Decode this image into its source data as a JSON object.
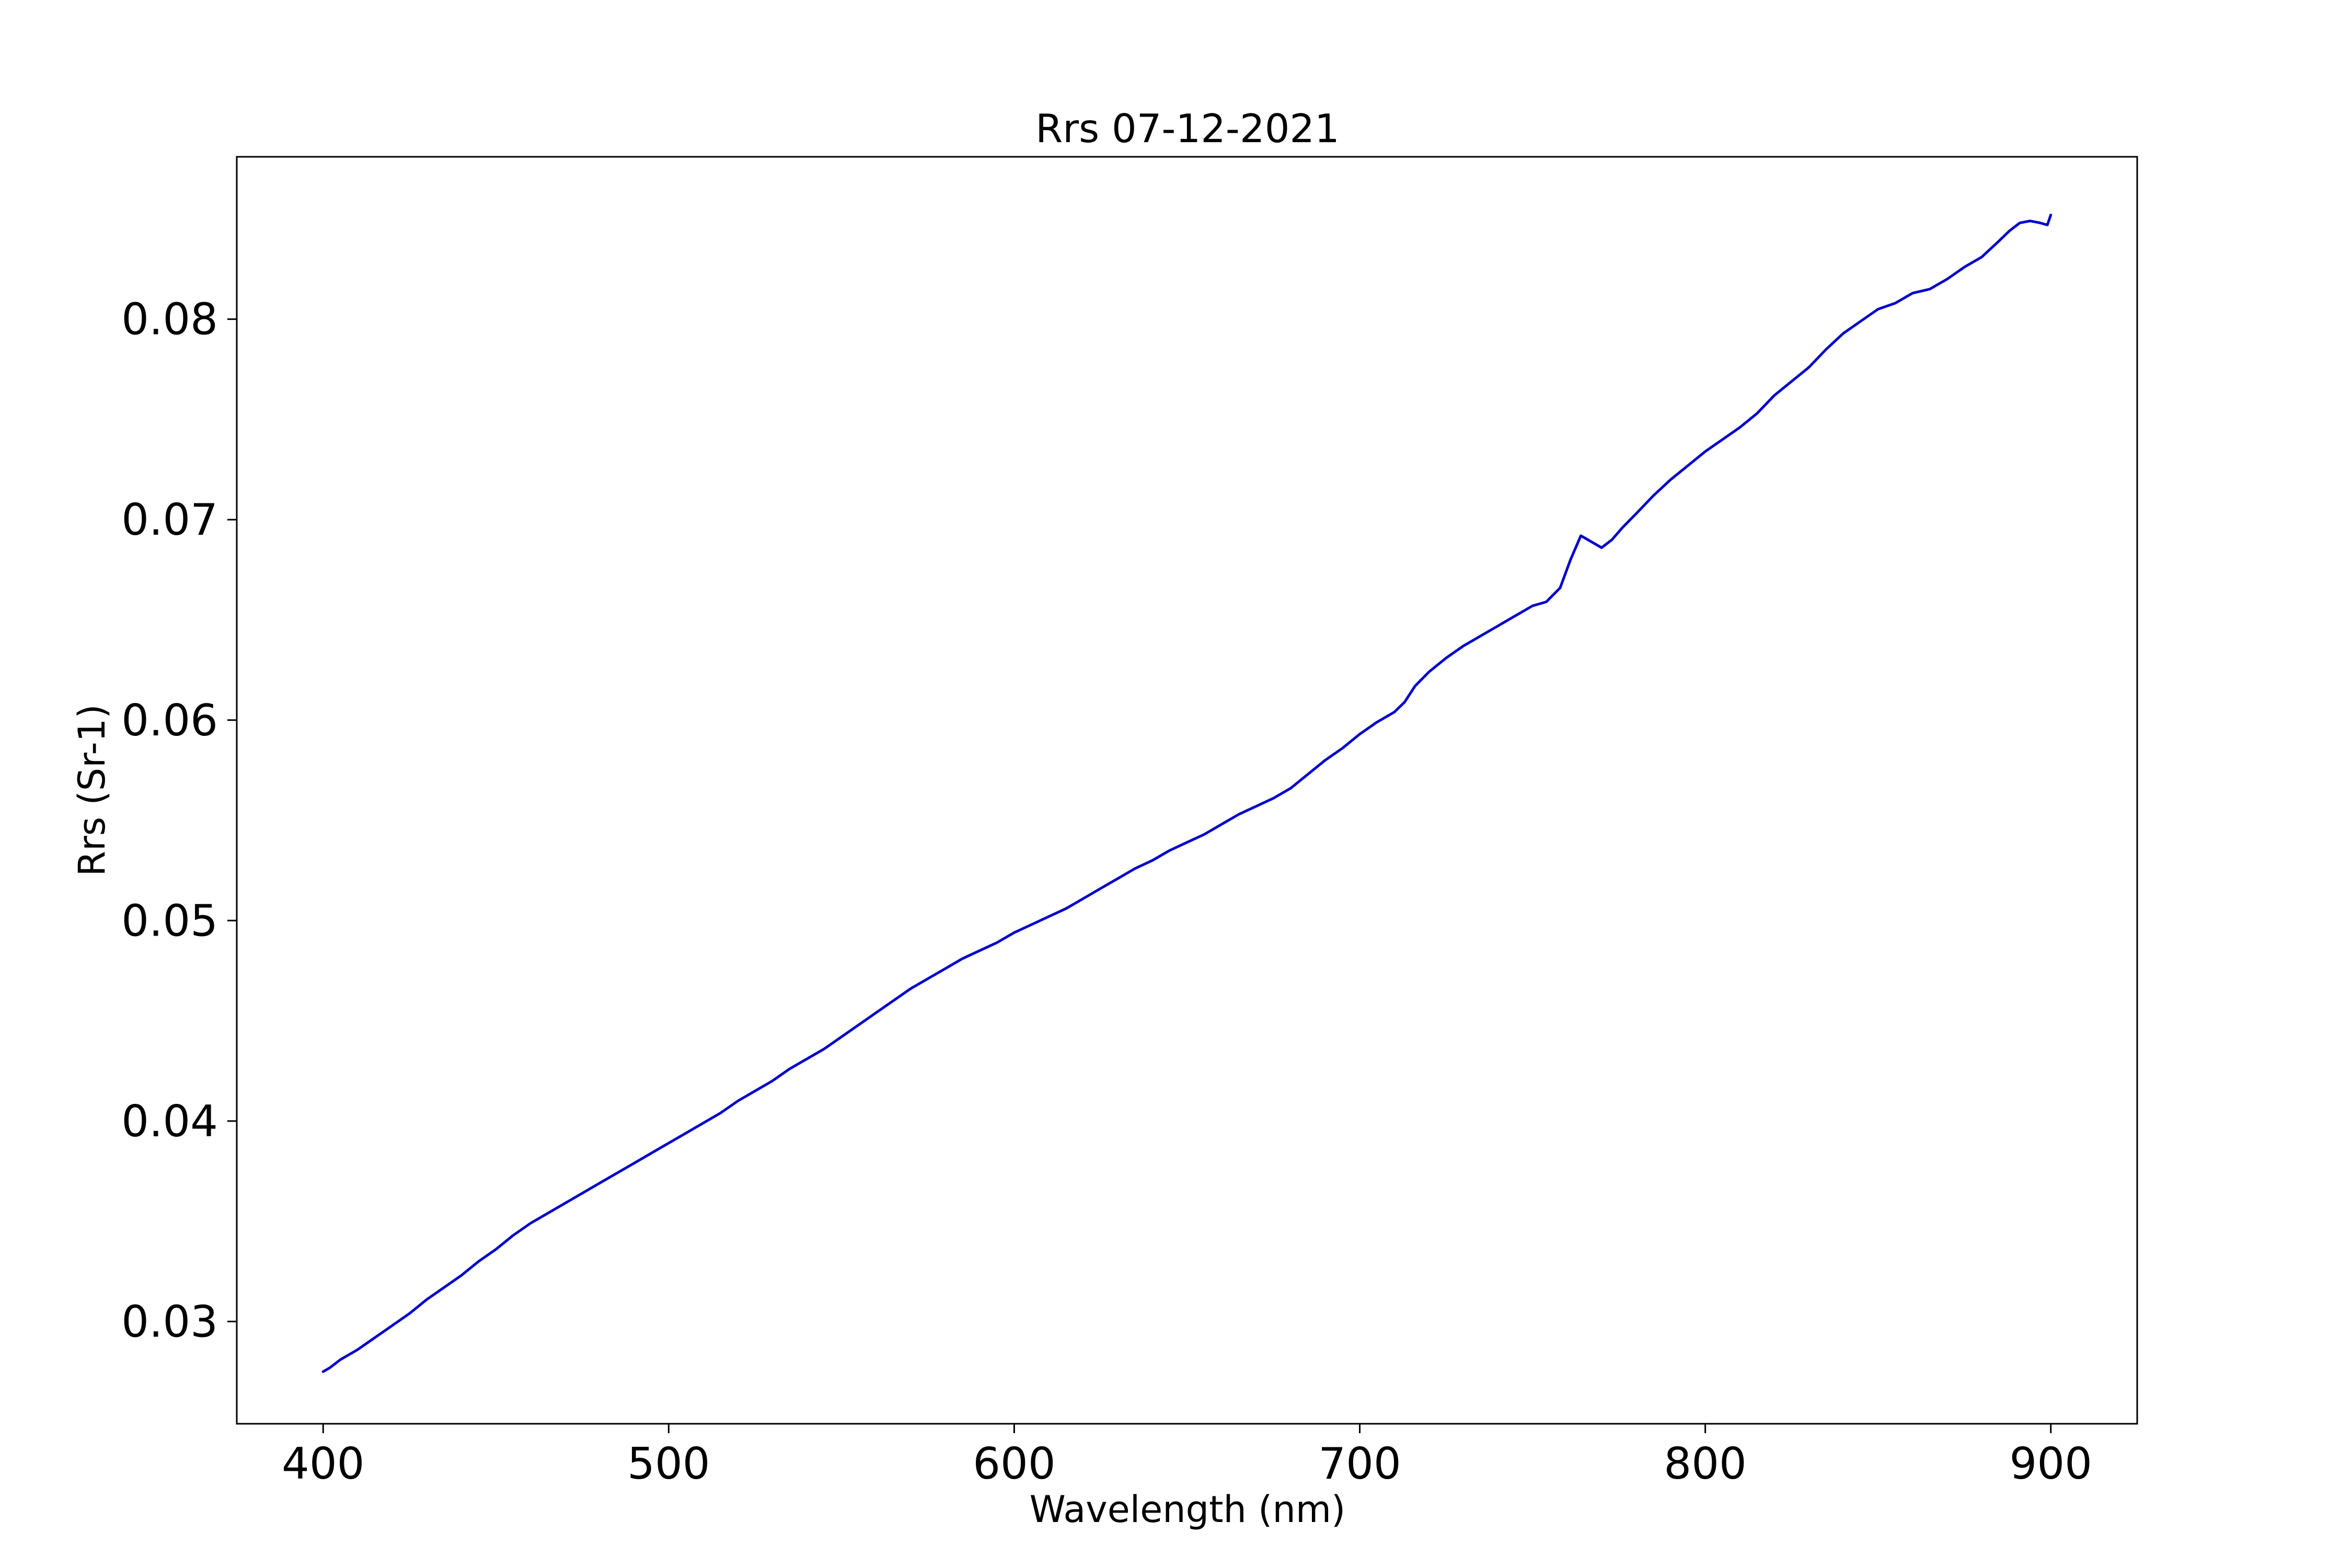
{
  "chart_data": {
    "type": "line",
    "title": "Rrs 07-12-2021",
    "xlabel": "Wavelength (nm)",
    "ylabel": "Rrs (Sr-1)",
    "xlim": [
      375,
      925
    ],
    "ylim": [
      0.0249,
      0.0881
    ],
    "xticks": [
      400,
      500,
      600,
      700,
      800,
      900
    ],
    "xtick_labels": [
      "400",
      "500",
      "600",
      "700",
      "800",
      "900"
    ],
    "yticks": [
      0.03,
      0.04,
      0.05,
      0.06,
      0.07,
      0.08
    ],
    "ytick_labels": [
      "0.03",
      "0.04",
      "0.05",
      "0.06",
      "0.07",
      "0.08"
    ],
    "grid": false,
    "series": [
      {
        "color": "#0000cc",
        "x": [
          400,
          402,
          405,
          410,
          415,
          420,
          425,
          430,
          435,
          440,
          445,
          450,
          455,
          460,
          465,
          470,
          475,
          480,
          485,
          490,
          495,
          500,
          505,
          510,
          515,
          520,
          525,
          530,
          535,
          540,
          545,
          550,
          555,
          560,
          565,
          570,
          575,
          580,
          585,
          590,
          595,
          600,
          605,
          610,
          615,
          620,
          625,
          630,
          635,
          640,
          645,
          650,
          655,
          660,
          665,
          670,
          675,
          680,
          685,
          690,
          695,
          700,
          705,
          710,
          713,
          716,
          720,
          725,
          730,
          735,
          740,
          745,
          750,
          754,
          758,
          761,
          764,
          767,
          770,
          773,
          776,
          780,
          785,
          790,
          795,
          800,
          805,
          810,
          815,
          820,
          825,
          830,
          835,
          840,
          845,
          850,
          855,
          860,
          865,
          870,
          875,
          880,
          885,
          888,
          891,
          894,
          897,
          899,
          900
        ],
        "y": [
          0.0275,
          0.0277,
          0.0281,
          0.0286,
          0.0292,
          0.0298,
          0.0304,
          0.0311,
          0.0317,
          0.0323,
          0.033,
          0.0336,
          0.0343,
          0.0349,
          0.0354,
          0.0359,
          0.0364,
          0.0369,
          0.0374,
          0.0379,
          0.0384,
          0.0389,
          0.0394,
          0.0399,
          0.0404,
          0.041,
          0.0415,
          0.042,
          0.0426,
          0.0431,
          0.0436,
          0.0442,
          0.0448,
          0.0454,
          0.046,
          0.0466,
          0.0471,
          0.0476,
          0.0481,
          0.0485,
          0.0489,
          0.0494,
          0.0498,
          0.0502,
          0.0506,
          0.0511,
          0.0516,
          0.0521,
          0.0526,
          0.053,
          0.0535,
          0.0539,
          0.0543,
          0.0548,
          0.0553,
          0.0557,
          0.0561,
          0.0566,
          0.0573,
          0.058,
          0.0586,
          0.0593,
          0.0599,
          0.0604,
          0.0609,
          0.0617,
          0.0624,
          0.0631,
          0.0637,
          0.0642,
          0.0647,
          0.0652,
          0.0657,
          0.0659,
          0.0666,
          0.068,
          0.0692,
          0.0689,
          0.0686,
          0.069,
          0.0696,
          0.0703,
          0.0712,
          0.072,
          0.0727,
          0.0734,
          0.074,
          0.0746,
          0.0753,
          0.0762,
          0.0769,
          0.0776,
          0.0785,
          0.0793,
          0.0799,
          0.0805,
          0.0808,
          0.0813,
          0.0815,
          0.082,
          0.0826,
          0.0831,
          0.0839,
          0.0844,
          0.0848,
          0.0849,
          0.0848,
          0.0847,
          0.0852
        ]
      }
    ]
  }
}
